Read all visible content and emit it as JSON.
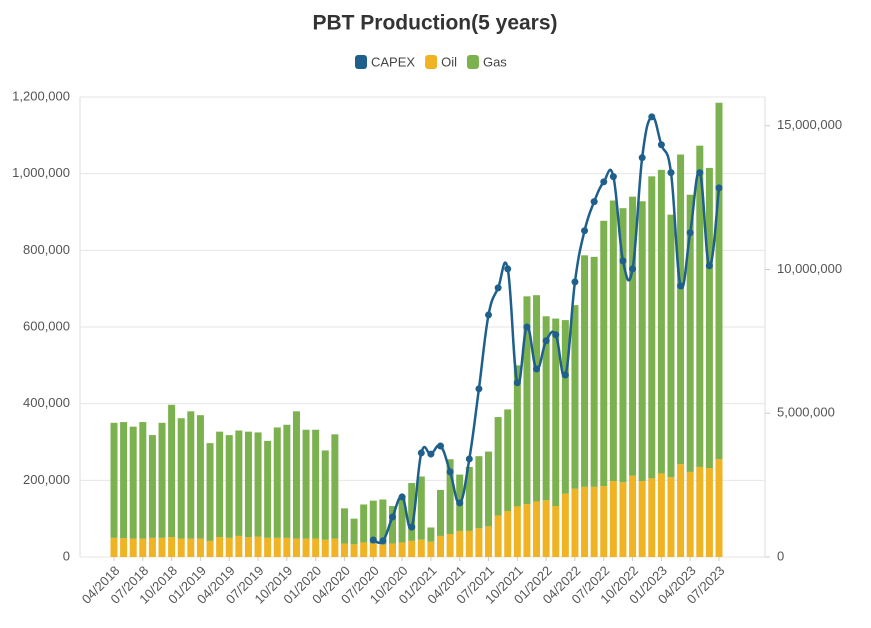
{
  "chart_data": {
    "type": "bar-line",
    "title": "PBT Production(5 years)",
    "categories": [
      "04/2018",
      null,
      null,
      "07/2018",
      null,
      null,
      "10/2018",
      null,
      null,
      "01/2019",
      null,
      null,
      "04/2019",
      null,
      null,
      "07/2019",
      null,
      null,
      "10/2019",
      null,
      null,
      "01/2020",
      null,
      null,
      "04/2020",
      null,
      null,
      "07/2020",
      null,
      null,
      "10/2020",
      null,
      null,
      "01/2021",
      null,
      null,
      "04/2021",
      null,
      null,
      "07/2021",
      null,
      null,
      "10/2021",
      null,
      null,
      "01/2022",
      null,
      null,
      "04/2022",
      null,
      null,
      "07/2022",
      null,
      null,
      "10/2022",
      null,
      null,
      "01/2023",
      null,
      null,
      "04/2023",
      null,
      null,
      "07/2023"
    ],
    "series": [
      {
        "name": "CAPEX",
        "color": "#1f5f8b",
        "type": "line",
        "axis": "y2",
        "values": [
          null,
          null,
          null,
          null,
          null,
          null,
          null,
          null,
          null,
          null,
          null,
          null,
          null,
          null,
          null,
          null,
          null,
          null,
          null,
          null,
          null,
          null,
          null,
          null,
          null,
          null,
          null,
          590000,
          560000,
          1390000,
          2090000,
          1040000,
          3620000,
          3580000,
          3860000,
          2960000,
          1880000,
          3410000,
          5850000,
          8420000,
          9360000,
          10020000,
          6060000,
          8000000,
          6540000,
          7520000,
          7730000,
          6330000,
          9570000,
          11350000,
          12360000,
          13050000,
          13230000,
          10300000,
          10020000,
          13890000,
          15310000,
          14340000,
          13370000,
          9430000,
          11280000,
          13370000,
          10130000,
          12840000
        ]
      },
      {
        "name": "Oil",
        "color": "#f0b323",
        "type": "bar",
        "values": [
          50000,
          49000,
          48000,
          48000,
          50000,
          50000,
          52000,
          48000,
          48000,
          48000,
          42000,
          52000,
          50000,
          55000,
          52000,
          53000,
          50000,
          50000,
          50000,
          48000,
          48000,
          48000,
          45000,
          48000,
          35000,
          33000,
          38000,
          35000,
          32000,
          35000,
          38000,
          42000,
          45000,
          40000,
          55000,
          60000,
          68000,
          68000,
          75000,
          80000,
          108000,
          120000,
          132000,
          138000,
          145000,
          148000,
          133000,
          165000,
          178000,
          183000,
          183000,
          185000,
          198000,
          195000,
          212000,
          198000,
          205000,
          218000,
          208000,
          242000,
          222000,
          235000,
          232000,
          255000
        ]
      },
      {
        "name": "Gas",
        "color": "#7cb14f",
        "type": "bar",
        "values": [
          300000,
          303000,
          292000,
          304000,
          268000,
          300000,
          345000,
          314000,
          332000,
          322000,
          255000,
          275000,
          268000,
          275000,
          275000,
          272000,
          253000,
          288000,
          295000,
          332000,
          284000,
          284000,
          233000,
          272000,
          92000,
          67000,
          99000,
          112000,
          118000,
          98000,
          122000,
          151000,
          165000,
          37000,
          120000,
          195000,
          147000,
          167000,
          188000,
          195000,
          257000,
          265000,
          368000,
          542000,
          538000,
          480000,
          489000,
          453000,
          479000,
          604000,
          600000,
          692000,
          732000,
          715000,
          728000,
          730000,
          788000,
          792000,
          685000,
          808000,
          723000,
          838000,
          783000,
          930000
        ]
      }
    ],
    "ylim": [
      0,
      1200000
    ],
    "yticks": [
      0,
      {
        "value": 200000,
        "label": "200,000"
      },
      {
        "value": 400000,
        "label": "400,000"
      },
      {
        "value": 600000,
        "label": "600,000"
      },
      {
        "value": 800000,
        "label": "800,000"
      },
      {
        "value": 1000000,
        "label": "1,000,000"
      },
      {
        "value": 1200000,
        "label": "1,200,000"
      }
    ],
    "y2lim": [
      0,
      16000000
    ],
    "y2ticks": [
      0,
      {
        "value": 5000000,
        "label": "5,000,000"
      },
      {
        "value": 10000000,
        "label": "10,000,000"
      },
      {
        "value": 15000000,
        "label": "15,000,000"
      }
    ],
    "grid": true,
    "legend": "top"
  }
}
